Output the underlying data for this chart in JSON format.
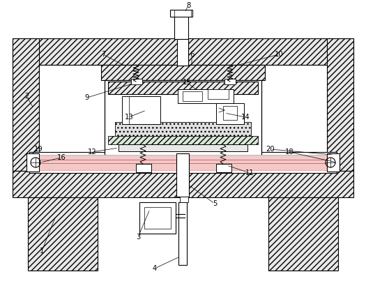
{
  "fig_width": 5.25,
  "fig_height": 4.03,
  "dpi": 100,
  "bg_color": "#ffffff",
  "frame_bg": "#f5f5f5",
  "hatch_color": "#888888"
}
